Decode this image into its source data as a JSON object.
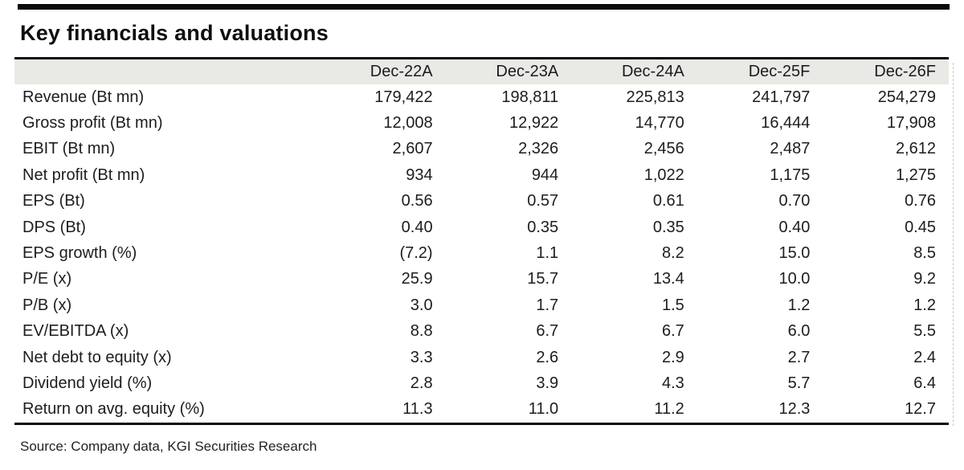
{
  "title": "Key financials and valuations",
  "source": "Source: Company data, KGI Securities Research",
  "colors": {
    "header_bg": "#e9e9e6",
    "rule": "#0b0b0b",
    "text": "#1d1d1d"
  },
  "table": {
    "columns": [
      "Dec-22A",
      "Dec-23A",
      "Dec-24A",
      "Dec-25F",
      "Dec-26F"
    ],
    "rows": [
      {
        "label": "Revenue (Bt mn)",
        "values": [
          "179,422",
          "198,811",
          "225,813",
          "241,797",
          "254,279"
        ]
      },
      {
        "label": "Gross profit (Bt mn)",
        "values": [
          "12,008",
          "12,922",
          "14,770",
          "16,444",
          "17,908"
        ]
      },
      {
        "label": "EBIT (Bt mn)",
        "values": [
          "2,607",
          "2,326",
          "2,456",
          "2,487",
          "2,612"
        ]
      },
      {
        "label": "Net profit (Bt mn)",
        "values": [
          "934",
          "944",
          "1,022",
          "1,175",
          "1,275"
        ]
      },
      {
        "label": "EPS (Bt)",
        "values": [
          "0.56",
          "0.57",
          "0.61",
          "0.70",
          "0.76"
        ]
      },
      {
        "label": "DPS (Bt)",
        "values": [
          "0.40",
          "0.35",
          "0.35",
          "0.40",
          "0.45"
        ]
      },
      {
        "label": "EPS growth (%)",
        "values": [
          "(7.2)",
          "1.1",
          "8.2",
          "15.0",
          "8.5"
        ]
      },
      {
        "label": "P/E (x)",
        "values": [
          "25.9",
          "15.7",
          "13.4",
          "10.0",
          "9.2"
        ]
      },
      {
        "label": "P/B (x)",
        "values": [
          "3.0",
          "1.7",
          "1.5",
          "1.2",
          "1.2"
        ]
      },
      {
        "label": "EV/EBITDA (x)",
        "values": [
          "8.8",
          "6.7",
          "6.7",
          "6.0",
          "5.5"
        ]
      },
      {
        "label": "Net debt to equity (x)",
        "values": [
          "3.3",
          "2.6",
          "2.9",
          "2.7",
          "2.4"
        ]
      },
      {
        "label": "Dividend yield (%)",
        "values": [
          "2.8",
          "3.9",
          "4.3",
          "5.7",
          "6.4"
        ]
      },
      {
        "label": "Return on avg. equity (%)",
        "values": [
          "11.3",
          "11.0",
          "11.2",
          "12.3",
          "12.7"
        ]
      }
    ]
  }
}
